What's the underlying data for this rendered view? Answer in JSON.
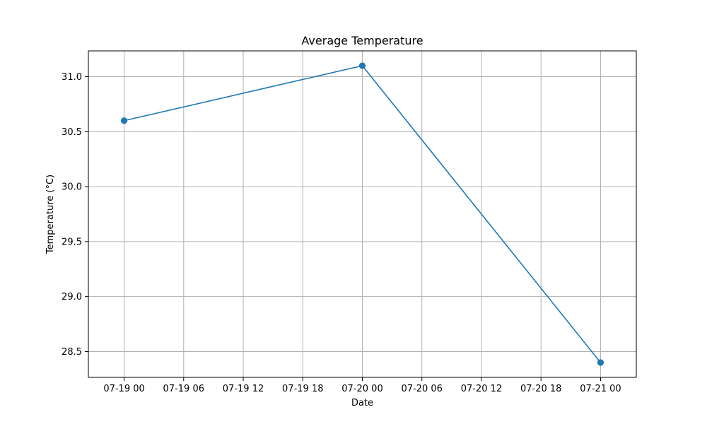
{
  "chart_data": {
    "type": "line",
    "title": "Average Temperature",
    "xlabel": "Date",
    "ylabel": "Temperature (°C)",
    "x": [
      "2023-07-19T00:00",
      "2023-07-20T00:00",
      "2023-07-21T00:00"
    ],
    "series": [
      {
        "values": [
          30.6,
          31.1,
          28.4
        ],
        "color": "#1f77b4",
        "marker": "circle"
      }
    ],
    "xlim": [
      "2023-07-18T20:24",
      "2023-07-21T03:36"
    ],
    "ylim": [
      28.265,
      31.235
    ],
    "x_ticks": [
      "2023-07-19T00:00",
      "2023-07-19T06:00",
      "2023-07-19T12:00",
      "2023-07-19T18:00",
      "2023-07-20T00:00",
      "2023-07-20T06:00",
      "2023-07-20T12:00",
      "2023-07-20T18:00",
      "2023-07-21T00:00"
    ],
    "x_tick_labels": [
      "07-19 00",
      "07-19 06",
      "07-19 12",
      "07-19 18",
      "07-20 00",
      "07-20 06",
      "07-20 12",
      "07-20 18",
      "07-21 00"
    ],
    "y_ticks": [
      28.5,
      29.0,
      29.5,
      30.0,
      30.5,
      31.0
    ],
    "y_tick_labels": [
      "28.5",
      "29.0",
      "29.5",
      "30.0",
      "30.5",
      "31.0"
    ],
    "grid": true,
    "legend": false
  }
}
